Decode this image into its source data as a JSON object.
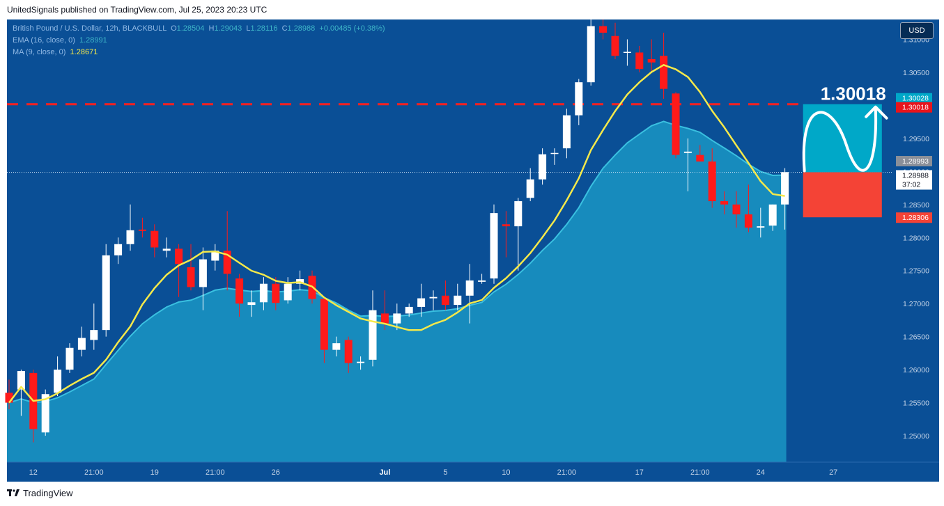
{
  "header": {
    "published": "UnitedSignals published on TradingView.com, Jul 25, 2023 20:23 UTC"
  },
  "legend": {
    "symbol": "British Pound / U.S. Dollar, 12h, BLACKBULL",
    "o_label": "O",
    "o": "1.28504",
    "h_label": "H",
    "h": "1.29043",
    "l_label": "L",
    "l": "1.28116",
    "c_label": "C",
    "c": "1.28988",
    "change": "+0.00485 (+0.38%)",
    "ema_label": "EMA (16, close, 0)",
    "ema_value": "1.28991",
    "ma_label": "MA (9, close, 0)",
    "ma_value": "1.28671"
  },
  "currency_button": "USD",
  "target_label": "1.30018",
  "footer": {
    "brand": "TradingView",
    "logo": "tradingview-logo-icon"
  },
  "colors": {
    "background": "#0a4f96",
    "up": "#ffffff",
    "down": "#ff1a1a",
    "ema_fill": "#1a95c4",
    "ma": "#f5e94a",
    "target": "#ff2020",
    "target_zone": "#00a8c8",
    "stop_zone": "#f44336"
  },
  "chart_data": {
    "type": "candlestick",
    "ylim": [
      1.246,
      1.313
    ],
    "price_ticks": [
      "1.25000",
      "1.25500",
      "1.26000",
      "1.26500",
      "1.27000",
      "1.27500",
      "1.28000",
      "1.28500",
      "1.29000",
      "1.29500",
      "1.30000",
      "1.30500",
      "1.31000"
    ],
    "x_ticks": [
      "12",
      "21:00",
      "19",
      "21:00",
      "26",
      "Jul",
      "5",
      "10",
      "21:00",
      "17",
      "21:00",
      "24",
      "27"
    ],
    "x_tick_index": [
      2,
      7,
      12,
      17,
      22,
      31,
      36,
      41,
      46,
      52,
      57,
      62,
      68
    ],
    "price_labels": [
      {
        "text": "1.30028",
        "bg": "#00a8c8",
        "price": 1.30028
      },
      {
        "text": "1.30018",
        "bg": "#e8141c",
        "price": 1.30018
      },
      {
        "text": "1.28993",
        "bg": "#8a8f99",
        "price": 1.28993
      },
      {
        "text": "1.28988",
        "bg": "#ffffff",
        "price": 1.28988,
        "fg": "#131722",
        "extra": "37:02"
      },
      {
        "text": "1.28306",
        "bg": "#f44336",
        "price": 1.28306
      }
    ],
    "target_price": 1.30018,
    "current_price": 1.28988,
    "position": {
      "entry": 1.28988,
      "target": 1.30018,
      "stop": 1.28306,
      "start_index": 65.5,
      "end_index": 72
    },
    "candles": [
      [
        1.2565,
        1.2585,
        1.254,
        1.255
      ],
      [
        1.257,
        1.26,
        1.253,
        1.2598
      ],
      [
        1.2595,
        1.26,
        1.249,
        1.251
      ],
      [
        1.2505,
        1.257,
        1.25,
        1.2563
      ],
      [
        1.2565,
        1.262,
        1.256,
        1.26
      ],
      [
        1.26,
        1.264,
        1.2595,
        1.2633
      ],
      [
        1.263,
        1.2665,
        1.262,
        1.2648
      ],
      [
        1.2645,
        1.27,
        1.263,
        1.266
      ],
      [
        1.266,
        1.279,
        1.265,
        1.2773
      ],
      [
        1.2773,
        1.28,
        1.276,
        1.279
      ],
      [
        1.279,
        1.285,
        1.278,
        1.2811
      ],
      [
        1.2812,
        1.283,
        1.28,
        1.281
      ],
      [
        1.281,
        1.282,
        1.277,
        1.2785
      ],
      [
        1.278,
        1.28,
        1.277,
        1.2783
      ],
      [
        1.2783,
        1.279,
        1.271,
        1.276
      ],
      [
        1.2755,
        1.279,
        1.272,
        1.2725
      ],
      [
        1.2725,
        1.2785,
        1.269,
        1.2767
      ],
      [
        1.2765,
        1.279,
        1.275,
        1.278
      ],
      [
        1.278,
        1.284,
        1.272,
        1.2745
      ],
      [
        1.2738,
        1.2745,
        1.268,
        1.27
      ],
      [
        1.2698,
        1.272,
        1.268,
        1.2702
      ],
      [
        1.2702,
        1.274,
        1.269,
        1.273
      ],
      [
        1.273,
        1.274,
        1.269,
        1.2701
      ],
      [
        1.2705,
        1.274,
        1.27,
        1.273
      ],
      [
        1.273,
        1.275,
        1.272,
        1.2737
      ],
      [
        1.2742,
        1.275,
        1.27,
        1.2707
      ],
      [
        1.2707,
        1.271,
        1.261,
        1.263
      ],
      [
        1.263,
        1.265,
        1.262,
        1.264
      ],
      [
        1.2645,
        1.265,
        1.2595,
        1.261
      ],
      [
        1.261,
        1.262,
        1.26,
        1.2612
      ],
      [
        1.2615,
        1.272,
        1.2605,
        1.269
      ],
      [
        1.2685,
        1.272,
        1.266,
        1.267
      ],
      [
        1.267,
        1.27,
        1.266,
        1.2685
      ],
      [
        1.2685,
        1.27,
        1.268,
        1.2695
      ],
      [
        1.2695,
        1.273,
        1.268,
        1.2708
      ],
      [
        1.2708,
        1.272,
        1.269,
        1.271
      ],
      [
        1.2712,
        1.2735,
        1.269,
        1.2698
      ],
      [
        1.2698,
        1.273,
        1.269,
        1.2712
      ],
      [
        1.2712,
        1.276,
        1.267,
        1.2735
      ],
      [
        1.2733,
        1.2745,
        1.273,
        1.2735
      ],
      [
        1.2738,
        1.285,
        1.273,
        1.2837
      ],
      [
        1.282,
        1.284,
        1.277,
        1.2817
      ],
      [
        1.2817,
        1.286,
        1.275,
        1.2855
      ],
      [
        1.286,
        1.2905,
        1.2855,
        1.2888
      ],
      [
        1.2888,
        1.2935,
        1.288,
        1.2926
      ],
      [
        1.2928,
        1.2935,
        1.291,
        1.2928
      ],
      [
        1.2935,
        1.2995,
        1.292,
        1.2985
      ],
      [
        1.2985,
        1.304,
        1.297,
        1.3035
      ],
      [
        1.3035,
        1.313,
        1.303,
        1.312
      ],
      [
        1.312,
        1.313,
        1.31,
        1.311
      ],
      [
        1.3105,
        1.3125,
        1.307,
        1.3075
      ],
      [
        1.3081,
        1.31,
        1.306,
        1.3081
      ],
      [
        1.308,
        1.309,
        1.305,
        1.3055
      ],
      [
        1.307,
        1.31,
        1.305,
        1.3065
      ],
      [
        1.3075,
        1.311,
        1.301,
        1.3025
      ],
      [
        1.3018,
        1.302,
        1.292,
        1.2925
      ],
      [
        1.2928,
        1.295,
        1.287,
        1.293
      ],
      [
        1.2925,
        1.294,
        1.2915,
        1.2915
      ],
      [
        1.2915,
        1.2935,
        1.2845,
        1.2855
      ],
      [
        1.2855,
        1.287,
        1.2835,
        1.285
      ],
      [
        1.285,
        1.287,
        1.2815,
        1.2835
      ],
      [
        1.2835,
        1.288,
        1.2808,
        1.2815
      ],
      [
        1.2815,
        1.2845,
        1.28,
        1.2817
      ],
      [
        1.2818,
        1.285,
        1.281,
        1.285
      ],
      [
        1.285,
        1.2905,
        1.2812,
        1.2899
      ]
    ]
  }
}
